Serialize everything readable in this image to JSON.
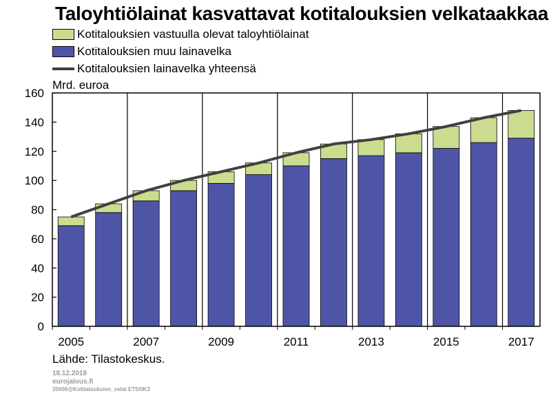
{
  "chart_data": {
    "type": "bar",
    "title": "Taloyhtiölainat kasvattavat kotitalouksien velkataakkaa",
    "unit_label": "Mrd. euroa",
    "stacked": true,
    "categories": [
      "2005",
      "2006",
      "2007",
      "2008",
      "2009",
      "2010",
      "2011",
      "2012",
      "2013",
      "2014",
      "2015",
      "2016",
      "2017"
    ],
    "x_tick_labels": [
      "2005",
      "",
      "2007",
      "",
      "2009",
      "",
      "2011",
      "",
      "2013",
      "",
      "2015",
      "",
      "2017"
    ],
    "series": [
      {
        "name": "Kotitalouksien muu lainavelka",
        "kind": "bar",
        "color": "#4f55a6",
        "values": [
          69,
          78,
          86,
          93,
          98,
          104,
          110,
          115,
          117,
          119,
          122,
          126,
          129
        ]
      },
      {
        "name": "Kotitalouksien vastuulla olevat taloyhtiölainat",
        "kind": "bar",
        "color": "#cbdc8f",
        "values": [
          6,
          6,
          7,
          7,
          8,
          8,
          9,
          10,
          11,
          13,
          15,
          17,
          19
        ]
      },
      {
        "name": "Kotitalouksien lainavelka yhteensä",
        "kind": "line",
        "color": "#404040",
        "values": [
          75,
          84,
          93,
          100,
          106,
          112,
          119,
          125,
          128,
          132,
          137,
          143,
          148
        ]
      }
    ],
    "legend_order": [
      "Kotitalouksien vastuulla olevat taloyhtiölainat",
      "Kotitalouksien muu lainavelka",
      "Kotitalouksien lainavelka yhteensä"
    ],
    "ylim": [
      0,
      160
    ],
    "yticks": [
      0,
      20,
      40,
      60,
      80,
      100,
      120,
      140,
      160
    ],
    "grid": "vertical lines every two years"
  },
  "source_note": "Lähde: Tilastokeskus.",
  "meta": {
    "date": "18.12.2018",
    "site": "eurojalous.fi",
    "code": "35006@Kotitalouksien_velat ET5/0K3"
  }
}
